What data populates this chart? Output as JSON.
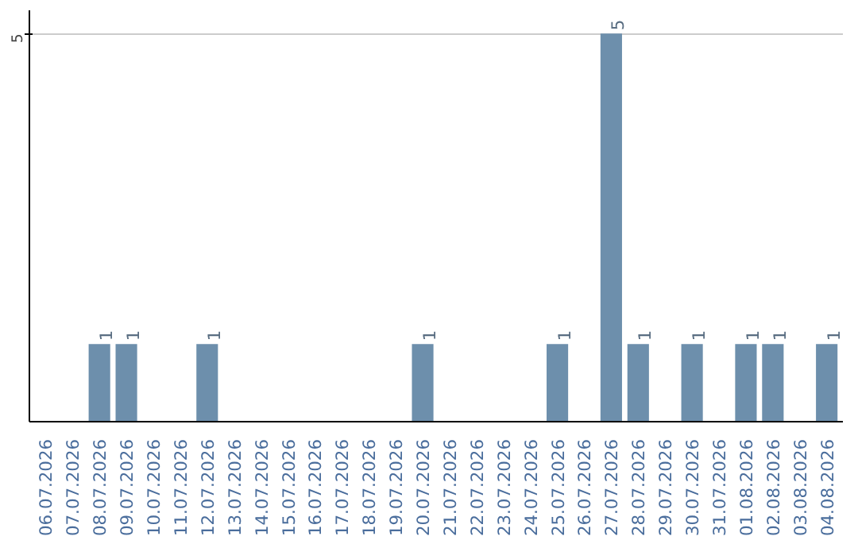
{
  "chart_data": {
    "type": "bar",
    "categories": [
      "06.07.2026",
      "07.07.2026",
      "08.07.2026",
      "09.07.2026",
      "10.07.2026",
      "11.07.2026",
      "12.07.2026",
      "13.07.2026",
      "14.07.2026",
      "15.07.2026",
      "16.07.2026",
      "17.07.2026",
      "18.07.2026",
      "19.07.2026",
      "20.07.2026",
      "21.07.2026",
      "22.07.2026",
      "23.07.2026",
      "24.07.2026",
      "25.07.2026",
      "26.07.2026",
      "27.07.2026",
      "28.07.2026",
      "29.07.2026",
      "30.07.2026",
      "31.07.2026",
      "01.08.2026",
      "02.08.2026",
      "03.08.2026",
      "04.08.2026"
    ],
    "values": [
      0,
      0,
      1,
      1,
      0,
      0,
      1,
      0,
      0,
      0,
      0,
      0,
      0,
      0,
      1,
      0,
      0,
      0,
      0,
      1,
      0,
      5,
      1,
      0,
      1,
      0,
      1,
      1,
      0,
      1
    ],
    "value_labels": [
      null,
      null,
      "1",
      "1",
      null,
      null,
      "1",
      null,
      null,
      null,
      null,
      null,
      null,
      null,
      "1",
      null,
      null,
      null,
      null,
      "1",
      null,
      "5",
      "1",
      null,
      "1",
      null,
      "1",
      "1",
      null,
      "1"
    ],
    "color": "#6d8fac",
    "ylim": [
      0,
      5.3
    ],
    "yticks": [
      5
    ],
    "grid": "y"
  }
}
